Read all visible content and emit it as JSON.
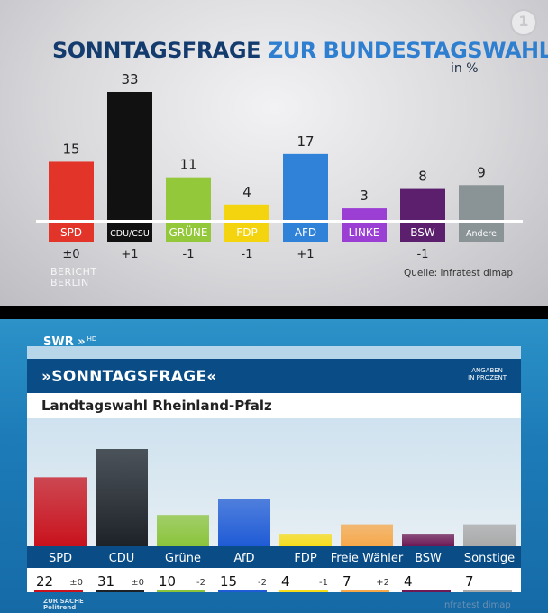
{
  "top": {
    "title_part1": "SONNTAGSFRAGE",
    "title_part2": "ZUR BUNDESTAGSWAHL",
    "unit": "in %",
    "logo": "1",
    "brand_line1": "BERICHT",
    "brand_line2": "BERLIN",
    "source": "Quelle: infratest dimap"
  },
  "bottom": {
    "channel": "SWR",
    "channel_suffix": "HD",
    "title": "»SONNTAGSFRAGE«",
    "units_line1": "ANGABEN",
    "units_line2": "IN PROZENT",
    "subtitle": "Landtagswahl Rheinland-Pfalz",
    "footer_line1": "ZUR SACHE",
    "footer_line2": "Politrend",
    "source": "Infratest dimap"
  },
  "chart_data": [
    {
      "type": "bar",
      "title": "SONNTAGSFRAGE ZUR BUNDESTAGSWAHL",
      "unit": "in %",
      "categories": [
        "SPD",
        "CDU/CSU",
        "GRÜNE",
        "FDP",
        "AFD",
        "LINKE",
        "BSW",
        "Andere"
      ],
      "values": [
        15,
        33,
        11,
        4,
        17,
        3,
        8,
        9
      ],
      "changes": [
        "±0",
        "+1",
        "-1",
        "-1",
        "+1",
        "",
        "-1",
        ""
      ],
      "colors": [
        "#e3342a",
        "#111111",
        "#93c83b",
        "#f4d40f",
        "#2f82d8",
        "#9b3fd4",
        "#5b1f6e",
        "#8a9497"
      ],
      "label_colors": [
        "#ffffff",
        "#ffffff",
        "#ffffff",
        "#ffffff",
        "#ffffff",
        "#ffffff",
        "#ffffff",
        "#ffffff"
      ],
      "ylim": [
        0,
        33
      ]
    },
    {
      "type": "bar",
      "title": "»SONNTAGSFRAGE«",
      "subtitle": "Landtagswahl Rheinland-Pfalz",
      "unit": "ANGABEN IN PROZENT",
      "categories": [
        "SPD",
        "CDU",
        "Grüne",
        "AfD",
        "FDP",
        "Freie Wähler",
        "BSW",
        "Sonstige"
      ],
      "values": [
        22,
        31,
        10,
        15,
        4,
        7,
        4,
        7
      ],
      "changes": [
        "±0",
        "±0",
        "-2",
        "-2",
        "-1",
        "+2",
        "",
        ""
      ],
      "colors": [
        "#c8121d",
        "#1d2228",
        "#8bc43b",
        "#1f5bd6",
        "#f7dc1a",
        "#f7a84a",
        "#6d1a55",
        "#a9a9a9"
      ],
      "ylim": [
        0,
        31
      ]
    }
  ]
}
